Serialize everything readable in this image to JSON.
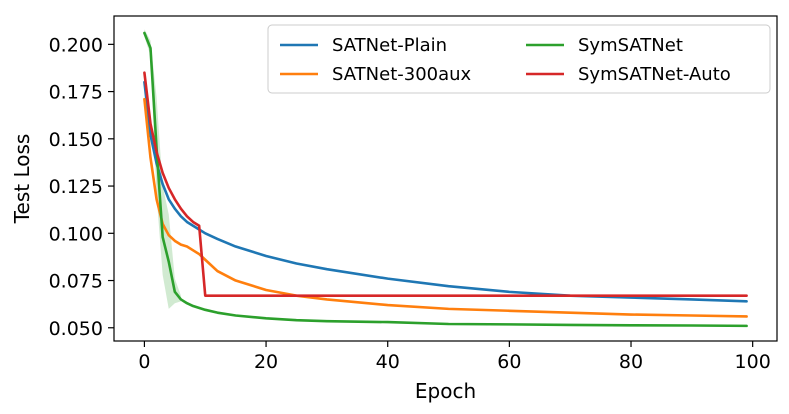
{
  "chart_data": {
    "type": "line",
    "title": "",
    "xlabel": "Epoch",
    "ylabel": "Test Loss",
    "xlim": [
      -5,
      104
    ],
    "ylim": [
      0.043,
      0.215
    ],
    "xticks": [
      0,
      20,
      40,
      60,
      80,
      100
    ],
    "yticks": [
      0.05,
      0.075,
      0.1,
      0.125,
      0.15,
      0.175,
      0.2
    ],
    "xtick_labels": [
      "0",
      "20",
      "40",
      "60",
      "80",
      "100"
    ],
    "ytick_labels": [
      "0.050",
      "0.075",
      "0.100",
      "0.125",
      "0.150",
      "0.175",
      "0.200"
    ],
    "grid": false,
    "legend_position": "top-right",
    "series": [
      {
        "name": "SATNet-Plain",
        "color": "#1f77b4",
        "x": [
          0,
          1,
          2,
          3,
          4,
          5,
          6,
          7,
          8,
          9,
          10,
          12,
          15,
          20,
          25,
          30,
          40,
          50,
          60,
          70,
          80,
          90,
          99
        ],
        "y": [
          0.18,
          0.152,
          0.137,
          0.126,
          0.118,
          0.113,
          0.109,
          0.106,
          0.104,
          0.102,
          0.1,
          0.097,
          0.093,
          0.088,
          0.084,
          0.081,
          0.076,
          0.072,
          0.069,
          0.067,
          0.066,
          0.065,
          0.064
        ]
      },
      {
        "name": "SATNet-300aux",
        "color": "#ff7f0e",
        "x": [
          0,
          1,
          2,
          3,
          4,
          5,
          6,
          7,
          8,
          9,
          10,
          12,
          15,
          20,
          25,
          30,
          40,
          50,
          60,
          70,
          80,
          90,
          99
        ],
        "y": [
          0.171,
          0.14,
          0.118,
          0.105,
          0.099,
          0.096,
          0.094,
          0.093,
          0.091,
          0.089,
          0.086,
          0.08,
          0.075,
          0.07,
          0.067,
          0.065,
          0.062,
          0.06,
          0.059,
          0.058,
          0.057,
          0.0565,
          0.056
        ]
      },
      {
        "name": "SymSATNet",
        "color": "#2ca02c",
        "x": [
          0,
          1,
          2,
          3,
          4,
          5,
          6,
          7,
          8,
          10,
          12,
          15,
          20,
          25,
          30,
          40,
          50,
          60,
          70,
          80,
          90,
          99
        ],
        "y": [
          0.206,
          0.198,
          0.145,
          0.098,
          0.085,
          0.069,
          0.065,
          0.063,
          0.0615,
          0.0595,
          0.058,
          0.0565,
          0.055,
          0.054,
          0.0535,
          0.053,
          0.052,
          0.0518,
          0.0515,
          0.0513,
          0.0512,
          0.051
        ]
      },
      {
        "name": "SymSATNet-Auto",
        "color": "#d62728",
        "x": [
          0,
          1,
          2,
          3,
          4,
          5,
          6,
          7,
          8,
          9,
          10,
          11,
          20,
          40,
          60,
          80,
          99
        ],
        "y": [
          0.185,
          0.158,
          0.143,
          0.132,
          0.124,
          0.118,
          0.113,
          0.109,
          0.106,
          0.104,
          0.067,
          0.067,
          0.067,
          0.067,
          0.067,
          0.067,
          0.067
        ]
      }
    ],
    "bands": [
      {
        "series": "SymSATNet",
        "color": "#2ca02c",
        "x": [
          0,
          1,
          2,
          3,
          4,
          5,
          6
        ],
        "lower": [
          0.204,
          0.194,
          0.12,
          0.078,
          0.06,
          0.063,
          0.064
        ],
        "upper": [
          0.208,
          0.202,
          0.172,
          0.125,
          0.11,
          0.076,
          0.067
        ]
      }
    ]
  }
}
